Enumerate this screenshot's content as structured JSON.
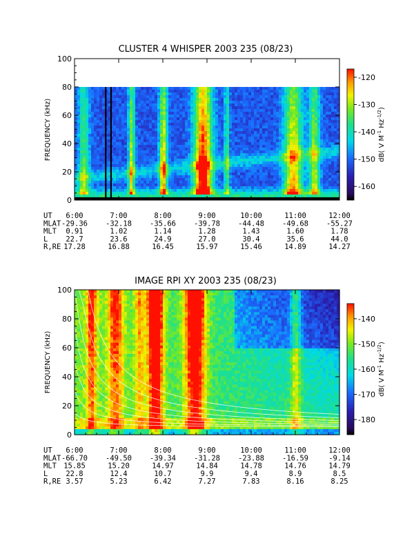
{
  "chart_data": [
    {
      "type": "heatmap",
      "title": "CLUSTER 4 WHISPER 2003 235 (08/23)",
      "ylabel": "FREQUENCY (kHz)",
      "colorbar_label": "dB( V M⁻¹ Hz⁻¹ᐟ²)",
      "colorbar_label_parts": [
        "dB( V M",
        "-1",
        " Hz",
        "-1/2",
        ")"
      ],
      "ylim": [
        0,
        100
      ],
      "y_ticks": [
        "0",
        "20",
        "40",
        "60",
        "80",
        "100"
      ],
      "x_ticks": [
        "6:00",
        "7:00",
        "8:00",
        "9:00",
        "10:00",
        "11:00",
        "12:00"
      ],
      "data_frequency_range_khz": [
        2,
        80
      ],
      "colorbar_range_db": [
        -165,
        -117
      ],
      "colorbar_ticks": [
        "-120",
        "-130",
        "-140",
        "-150",
        "-160"
      ],
      "ephemeris": {
        "labels": [
          "UT",
          "MLAT",
          "MLT",
          "L",
          "R,RE"
        ],
        "rows": [
          [
            "6:00",
            "7:00",
            "8:00",
            "9:00",
            "10:00",
            "11:00",
            "12:00"
          ],
          [
            "-29.36",
            "-32.18",
            "-35.66",
            "-39.78",
            "-44.48",
            "-49.68",
            "-55.27"
          ],
          [
            "0.91",
            "1.02",
            "1.14",
            "1.28",
            "1.43",
            "1.60",
            "1.78"
          ],
          [
            "22.7",
            "23.6",
            "24.9",
            "27.0",
            "30.4",
            "35.6",
            "44.0"
          ],
          [
            "17.28",
            "16.88",
            "16.45",
            "15.97",
            "15.46",
            "14.89",
            "14.27"
          ]
        ]
      }
    },
    {
      "type": "heatmap",
      "title": "IMAGE RPI XY 2003 235 (08/23)",
      "ylabel": "FREQUENCY (kHz)",
      "colorbar_label": "dB( V M⁻¹ Hz⁻¹ᐟ²)",
      "colorbar_label_parts": [
        "dB( V M",
        "-1",
        " Hz",
        "-1/2",
        ")"
      ],
      "ylim": [
        0,
        100
      ],
      "y_ticks": [
        "0",
        "20",
        "40",
        "60",
        "80",
        "100"
      ],
      "x_ticks": [
        "6:00",
        "7:00",
        "8:00",
        "9:00",
        "10:00",
        "11:00",
        "12:00"
      ],
      "colorbar_range_db": [
        -186,
        -134
      ],
      "colorbar_ticks": [
        "-140",
        "-150",
        "-160",
        "-170",
        "-180"
      ],
      "ephemeris": {
        "labels": [
          "UT",
          "MLAT",
          "MLT",
          "L",
          "R,RE"
        ],
        "rows": [
          [
            "6:00",
            "7:00",
            "8:00",
            "9:00",
            "10:00",
            "11:00",
            "12:00"
          ],
          [
            "-66.70",
            "-49.50",
            "-39.34",
            "-31.28",
            "-23.88",
            "-16.59",
            "-9.14"
          ],
          [
            "15.85",
            "15.20",
            "14.97",
            "14.84",
            "14.78",
            "14.76",
            "14.79"
          ],
          [
            "22.8",
            "12.4",
            "10.7",
            "9.9",
            "9.4",
            "8.9",
            "8.5"
          ],
          [
            "3.57",
            "5.23",
            "6.42",
            "7.27",
            "7.83",
            "8.16",
            "8.25"
          ]
        ]
      }
    }
  ]
}
